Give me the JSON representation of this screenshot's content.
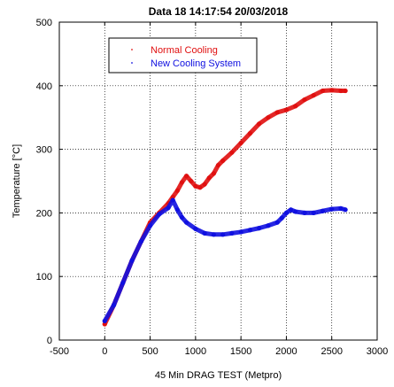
{
  "chart_data": {
    "type": "scatter",
    "title": "Data 18 14:17:54  20/03/2018",
    "xlabel": "45 Min DRAG TEST (Metpro)",
    "ylabel": "Temperature [°C]",
    "xlim": [
      -500,
      3000
    ],
    "ylim": [
      0,
      500
    ],
    "xticks": [
      -500,
      0,
      500,
      1000,
      1500,
      2000,
      2500,
      3000
    ],
    "yticks": [
      0,
      100,
      200,
      300,
      400,
      500
    ],
    "grid": true,
    "legend_position": "top-left",
    "series": [
      {
        "name": "Normal Cooling",
        "color": "#e01010",
        "x": [
          0,
          100,
          200,
          300,
          400,
          500,
          600,
          700,
          750,
          800,
          850,
          900,
          950,
          1000,
          1050,
          1100,
          1150,
          1200,
          1250,
          1300,
          1400,
          1500,
          1600,
          1700,
          1800,
          1900,
          2000,
          2100,
          2200,
          2300,
          2400,
          2500,
          2600,
          2650
        ],
        "y": [
          25,
          55,
          90,
          125,
          155,
          185,
          200,
          215,
          225,
          235,
          248,
          258,
          250,
          242,
          240,
          245,
          255,
          262,
          275,
          282,
          295,
          310,
          325,
          340,
          350,
          358,
          362,
          368,
          378,
          385,
          392,
          393,
          392,
          392
        ]
      },
      {
        "name": "New Cooling System",
        "color": "#1010e0",
        "x": [
          0,
          100,
          200,
          300,
          400,
          500,
          600,
          700,
          750,
          800,
          850,
          900,
          1000,
          1100,
          1200,
          1300,
          1400,
          1500,
          1600,
          1700,
          1800,
          1900,
          1950,
          2000,
          2050,
          2100,
          2200,
          2300,
          2400,
          2500,
          2600,
          2650
        ],
        "y": [
          30,
          55,
          90,
          125,
          155,
          180,
          198,
          208,
          220,
          205,
          193,
          185,
          175,
          168,
          166,
          166,
          168,
          170,
          173,
          176,
          180,
          185,
          192,
          200,
          205,
          202,
          200,
          200,
          203,
          206,
          207,
          205
        ]
      }
    ]
  }
}
